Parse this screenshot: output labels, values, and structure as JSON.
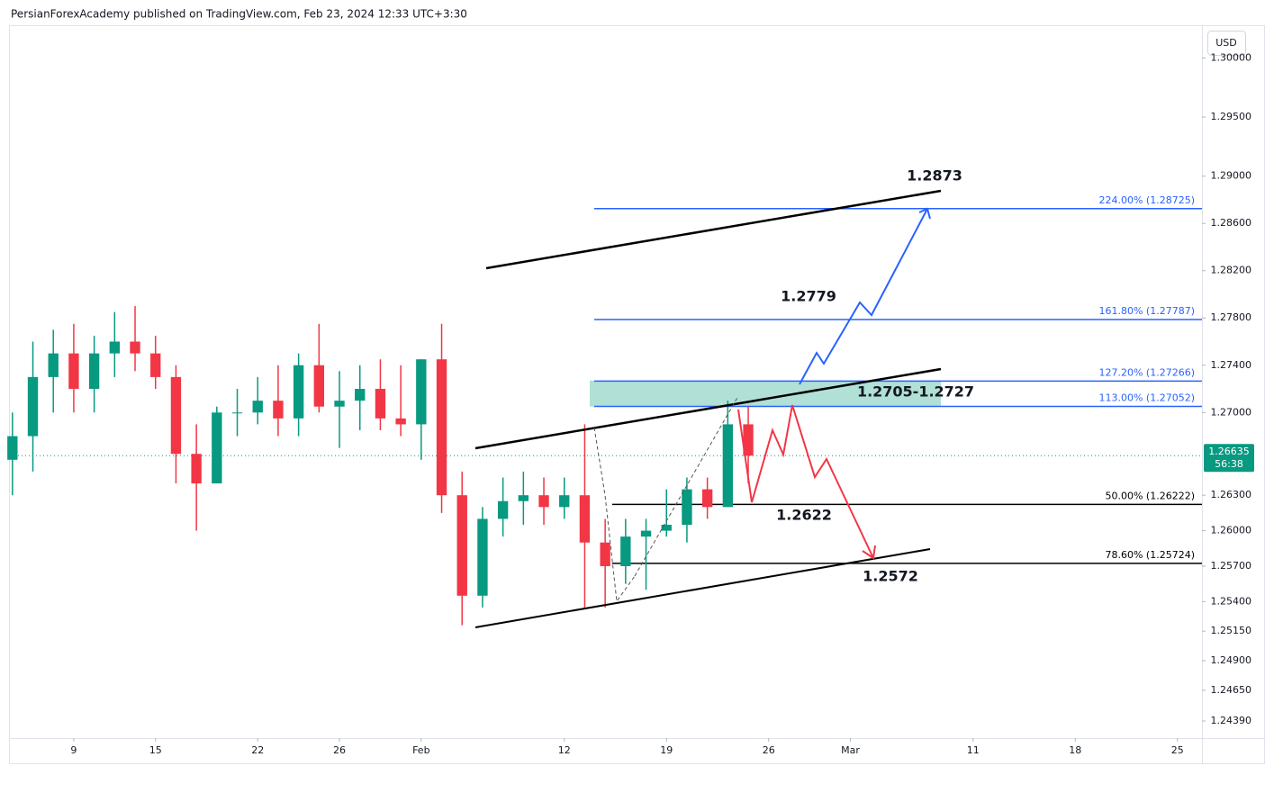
{
  "header": {
    "text": "PersianForexAcademy published on TradingView.com, Feb 23, 2024 12:33 UTC+3:30"
  },
  "chart_data": {
    "type": "candlestick",
    "x": [
      -3,
      -2,
      -1,
      0,
      1,
      2,
      3,
      4,
      5,
      6,
      7,
      8,
      9,
      10,
      11,
      12,
      13,
      14,
      15,
      16,
      17,
      18,
      19,
      20,
      21,
      22,
      23,
      24,
      25,
      26,
      27,
      28,
      29,
      30,
      31,
      32,
      33
    ],
    "open": [
      1.266,
      1.268,
      1.273,
      1.275,
      1.272,
      1.275,
      1.276,
      1.275,
      1.273,
      1.2665,
      1.264,
      1.27,
      1.27,
      1.271,
      1.2695,
      1.274,
      1.2705,
      1.271,
      1.272,
      1.2695,
      1.269,
      1.2745,
      1.263,
      1.2545,
      1.261,
      1.2625,
      1.263,
      1.262,
      1.263,
      1.259,
      1.257,
      1.2595,
      1.26,
      1.2605,
      1.2635,
      1.262,
      1.269
    ],
    "high": [
      1.27,
      1.276,
      1.277,
      1.2775,
      1.2765,
      1.2785,
      1.279,
      1.2765,
      1.274,
      1.269,
      1.2705,
      1.272,
      1.273,
      1.274,
      1.275,
      1.2775,
      1.2735,
      1.274,
      1.2745,
      1.274,
      1.2745,
      1.2775,
      1.265,
      1.262,
      1.2645,
      1.265,
      1.2645,
      1.2645,
      1.269,
      1.261,
      1.261,
      1.261,
      1.2635,
      1.2645,
      1.2645,
      1.271,
      1.2705
    ],
    "low": [
      1.263,
      1.265,
      1.27,
      1.27,
      1.27,
      1.273,
      1.2735,
      1.272,
      1.264,
      1.26,
      1.264,
      1.268,
      1.269,
      1.268,
      1.268,
      1.27,
      1.267,
      1.2685,
      1.2685,
      1.268,
      1.266,
      1.2615,
      1.252,
      1.2535,
      1.2595,
      1.2605,
      1.2605,
      1.261,
      1.2535,
      1.2535,
      1.2555,
      1.255,
      1.2595,
      1.259,
      1.261,
      1.262,
      1.264
    ],
    "close": [
      1.268,
      1.273,
      1.275,
      1.272,
      1.275,
      1.276,
      1.275,
      1.273,
      1.2665,
      1.264,
      1.27,
      1.27,
      1.271,
      1.2695,
      1.274,
      1.2705,
      1.271,
      1.272,
      1.2695,
      1.269,
      1.2745,
      1.263,
      1.2545,
      1.261,
      1.2625,
      1.263,
      1.262,
      1.263,
      1.259,
      1.257,
      1.2595,
      1.26,
      1.2605,
      1.2635,
      1.262,
      1.269,
      1.26635
    ],
    "up_color": "#089981",
    "down_color": "#f23645",
    "xlim": [
      -3.08,
      55.2
    ],
    "xticks": [
      {
        "value": 0,
        "label": "9"
      },
      {
        "value": 4,
        "label": "15"
      },
      {
        "value": 9,
        "label": "22"
      },
      {
        "value": 13,
        "label": "26"
      },
      {
        "value": 17,
        "label": "Feb"
      },
      {
        "value": 24,
        "label": "12"
      },
      {
        "value": 29,
        "label": "19"
      },
      {
        "value": 34,
        "label": "26"
      },
      {
        "value": 38,
        "label": "Mar"
      },
      {
        "value": 44,
        "label": "11"
      },
      {
        "value": 49,
        "label": "18"
      },
      {
        "value": 54,
        "label": "25"
      }
    ],
    "ylim": [
      1.24245,
      1.30262
    ],
    "yticks": [
      {
        "value": 1.3,
        "label": "1.30000"
      },
      {
        "value": 1.295,
        "label": "1.29500"
      },
      {
        "value": 1.29,
        "label": "1.29000"
      },
      {
        "value": 1.286,
        "label": "1.28600"
      },
      {
        "value": 1.282,
        "label": "1.28200"
      },
      {
        "value": 1.278,
        "label": "1.27800"
      },
      {
        "value": 1.274,
        "label": "1.27400"
      },
      {
        "value": 1.27,
        "label": "1.27000"
      },
      {
        "value": 1.263,
        "label": "1.26300"
      },
      {
        "value": 1.26,
        "label": "1.26000"
      },
      {
        "value": 1.257,
        "label": "1.25700"
      },
      {
        "value": 1.254,
        "label": "1.25400"
      },
      {
        "value": 1.2515,
        "label": "1.25150"
      },
      {
        "value": 1.249,
        "label": "1.24900"
      },
      {
        "value": 1.2465,
        "label": "1.24650"
      },
      {
        "value": 1.2439,
        "label": "1.24390"
      }
    ],
    "last_price": {
      "value": 1.26635,
      "label": "1.26635"
    },
    "countdown": "56:38",
    "currency": "USD",
    "fib_levels": [
      {
        "label": "224.00% (1.28725)",
        "price": 1.28725
      },
      {
        "label": "161.80% (1.27787)",
        "price": 1.27787
      },
      {
        "label": "127.20% (1.27266)",
        "price": 1.27266
      },
      {
        "label": "113.00% (1.27052)",
        "price": 1.27052
      },
      {
        "label": "50.00% (1.26222)",
        "price": 1.26222
      },
      {
        "label": "78.60% (1.25724)",
        "price": 1.25724
      }
    ],
    "zone": {
      "low": 1.2705,
      "high": 1.2727,
      "label": "1.2705-1.2727"
    },
    "annotations": [
      "1.2873",
      "1.2779",
      "1.2622",
      "1.2572"
    ]
  }
}
